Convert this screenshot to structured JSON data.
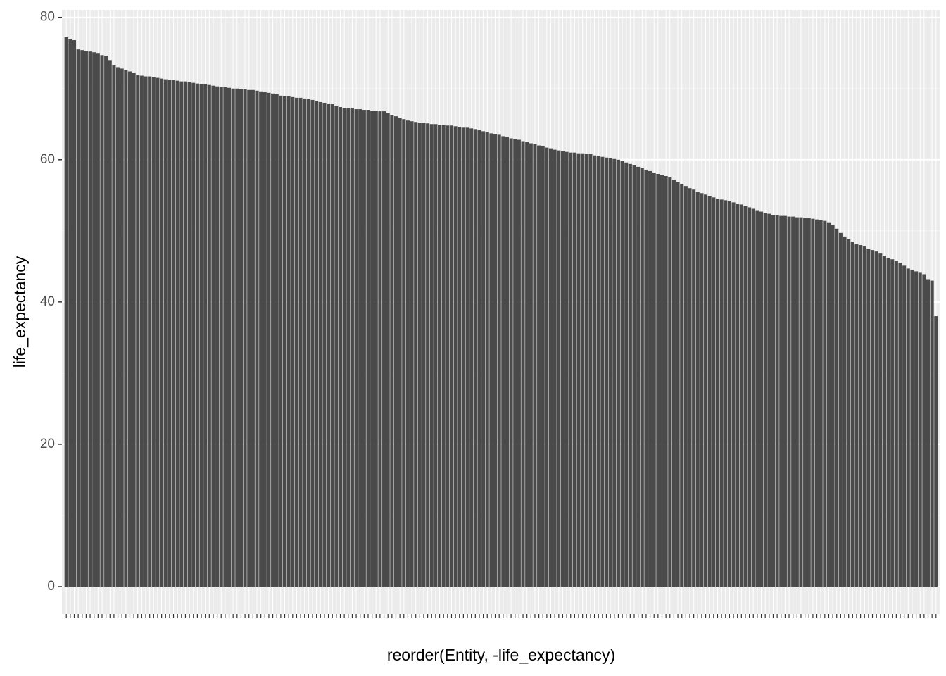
{
  "chart_data": {
    "type": "bar",
    "x_label": "reorder(Entity, -life_expectancy)",
    "y_label": "life_expectancy",
    "categories": [
      null,
      null,
      null,
      null,
      null,
      null,
      null,
      null,
      null,
      null,
      null,
      null,
      null,
      null,
      null,
      null,
      null,
      null,
      null,
      null,
      null,
      null,
      null,
      null,
      null,
      null,
      null,
      null,
      null,
      null,
      null,
      null,
      null,
      null,
      null,
      null,
      null,
      null,
      null,
      null,
      null,
      null,
      null,
      null,
      null,
      null,
      null,
      null,
      null,
      null,
      null,
      null,
      null,
      null,
      null,
      null,
      null,
      null,
      null,
      null,
      null,
      null,
      null,
      null,
      null,
      null,
      null,
      null,
      null,
      null,
      null,
      null,
      null,
      null,
      null,
      null,
      null,
      null,
      null,
      null,
      null,
      null,
      null,
      null,
      null,
      null,
      null,
      null,
      null,
      null,
      null,
      null,
      null,
      null,
      null,
      null,
      null,
      null,
      null,
      null,
      null,
      null,
      null,
      null,
      null,
      null,
      null,
      null,
      null,
      null,
      null,
      null,
      null,
      null,
      null,
      null,
      null,
      null,
      null,
      null,
      null,
      null,
      null,
      null,
      null,
      null,
      null,
      null,
      null,
      null,
      null,
      null,
      null,
      null,
      null,
      null,
      null,
      null,
      null,
      null,
      null,
      null,
      null,
      null,
      null,
      null,
      null,
      null,
      null,
      null,
      null,
      null,
      null,
      null,
      null,
      null,
      null,
      null,
      null,
      null,
      null,
      null,
      null,
      null,
      null,
      null,
      null,
      null,
      null,
      null,
      null,
      null,
      null,
      null,
      null,
      null,
      null,
      null,
      null,
      null,
      null,
      null,
      null,
      null,
      null,
      null,
      null,
      null,
      null,
      null,
      null,
      null,
      null,
      null,
      null,
      null,
      null,
      null,
      null,
      null,
      null,
      null,
      null,
      null,
      null,
      null,
      null,
      null,
      null,
      null,
      null,
      null,
      null,
      null,
      null,
      null,
      null,
      null,
      null,
      null
    ],
    "values": [
      77.2,
      77.0,
      76.8,
      75.5,
      75.4,
      75.3,
      75.2,
      75.1,
      75.0,
      74.7,
      74.6,
      74.0,
      73.3,
      73.0,
      72.8,
      72.6,
      72.4,
      72.2,
      71.9,
      71.8,
      71.7,
      71.7,
      71.6,
      71.5,
      71.4,
      71.3,
      71.2,
      71.2,
      71.1,
      71.0,
      71.0,
      70.9,
      70.8,
      70.7,
      70.6,
      70.6,
      70.5,
      70.4,
      70.3,
      70.2,
      70.2,
      70.1,
      70.0,
      70.0,
      69.9,
      69.9,
      69.8,
      69.8,
      69.7,
      69.6,
      69.5,
      69.4,
      69.3,
      69.2,
      69.0,
      68.9,
      68.9,
      68.8,
      68.7,
      68.7,
      68.6,
      68.5,
      68.4,
      68.2,
      68.1,
      68.0,
      67.9,
      67.8,
      67.6,
      67.4,
      67.3,
      67.2,
      67.2,
      67.1,
      67.1,
      67.0,
      67.0,
      66.9,
      66.9,
      66.8,
      66.8,
      66.6,
      66.3,
      66.1,
      65.9,
      65.7,
      65.5,
      65.4,
      65.3,
      65.2,
      65.2,
      65.1,
      65.0,
      65.0,
      64.9,
      64.9,
      64.8,
      64.8,
      64.7,
      64.6,
      64.5,
      64.5,
      64.4,
      64.3,
      64.2,
      64.0,
      63.9,
      63.7,
      63.6,
      63.5,
      63.3,
      63.2,
      63.0,
      62.9,
      62.8,
      62.6,
      62.5,
      62.3,
      62.2,
      62.0,
      61.9,
      61.7,
      61.6,
      61.4,
      61.3,
      61.2,
      61.1,
      61.0,
      61.0,
      60.9,
      60.9,
      60.8,
      60.8,
      60.6,
      60.5,
      60.4,
      60.3,
      60.2,
      60.1,
      60.0,
      59.8,
      59.6,
      59.4,
      59.2,
      59.0,
      58.8,
      58.6,
      58.4,
      58.2,
      58.0,
      57.9,
      57.7,
      57.5,
      57.2,
      56.9,
      56.6,
      56.3,
      56.0,
      55.8,
      55.5,
      55.3,
      55.1,
      54.9,
      54.7,
      54.5,
      54.4,
      54.3,
      54.2,
      54.0,
      53.8,
      53.7,
      53.5,
      53.3,
      53.1,
      52.9,
      52.7,
      52.5,
      52.4,
      52.2,
      52.2,
      52.1,
      52.1,
      52.0,
      52.0,
      51.9,
      51.9,
      51.8,
      51.8,
      51.7,
      51.6,
      51.5,
      51.4,
      51.2,
      50.8,
      50.3,
      49.7,
      49.2,
      48.8,
      48.5,
      48.2,
      48.0,
      47.8,
      47.5,
      47.3,
      47.1,
      46.8,
      46.5,
      46.2,
      46.0,
      45.8,
      45.5,
      45.1,
      44.7,
      44.5,
      44.3,
      44.2,
      43.9,
      43.2,
      43.0,
      38.0
    ],
    "color": "#4a4a4a",
    "ylim": [
      -3.86,
      81.06
    ],
    "yticks": [
      0,
      20,
      40,
      60,
      80
    ],
    "grid": true
  }
}
